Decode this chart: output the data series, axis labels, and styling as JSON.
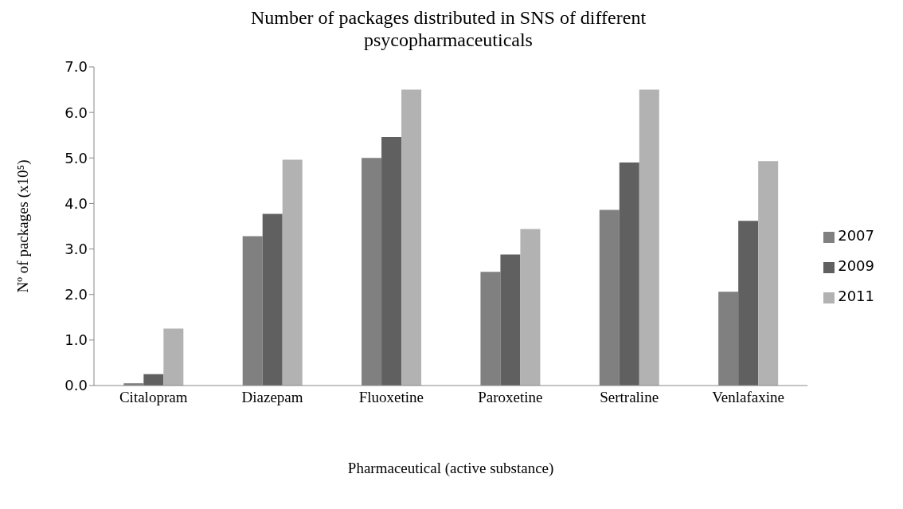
{
  "chart_data": {
    "type": "bar",
    "title": "Number of packages distributed in SNS of different psycopharmaceuticals",
    "xlabel": "Pharmaceutical (active substance)",
    "ylabel": "Nº of packages    (x10⁵)",
    "categories": [
      "Citalopram",
      "Diazepam",
      "Fluoxetine",
      "Paroxetine",
      "Sertraline",
      "Venlafaxine"
    ],
    "series": [
      {
        "name": "2007",
        "color": "#808080",
        "values": [
          0.05,
          3.28,
          5.0,
          2.5,
          3.86,
          2.06
        ]
      },
      {
        "name": "2009",
        "color": "#606060",
        "values": [
          0.25,
          3.77,
          5.46,
          2.88,
          4.9,
          3.62
        ]
      },
      {
        "name": "2011",
        "color": "#b2b2b2",
        "values": [
          1.25,
          4.96,
          6.5,
          3.44,
          6.5,
          4.93
        ]
      }
    ],
    "ylim": [
      0,
      7
    ],
    "yticks": [
      {
        "value": 0,
        "label": "0.0"
      },
      {
        "value": 1,
        "label": "1.0"
      },
      {
        "value": 2,
        "label": "2.0"
      },
      {
        "value": 3,
        "label": "3.0"
      },
      {
        "value": 4,
        "label": "4.0"
      },
      {
        "value": 5,
        "label": "5.0"
      },
      {
        "value": 6,
        "label": "6.0"
      },
      {
        "value": 7,
        "label": "7.0"
      }
    ],
    "grid": false,
    "legend": "right"
  }
}
